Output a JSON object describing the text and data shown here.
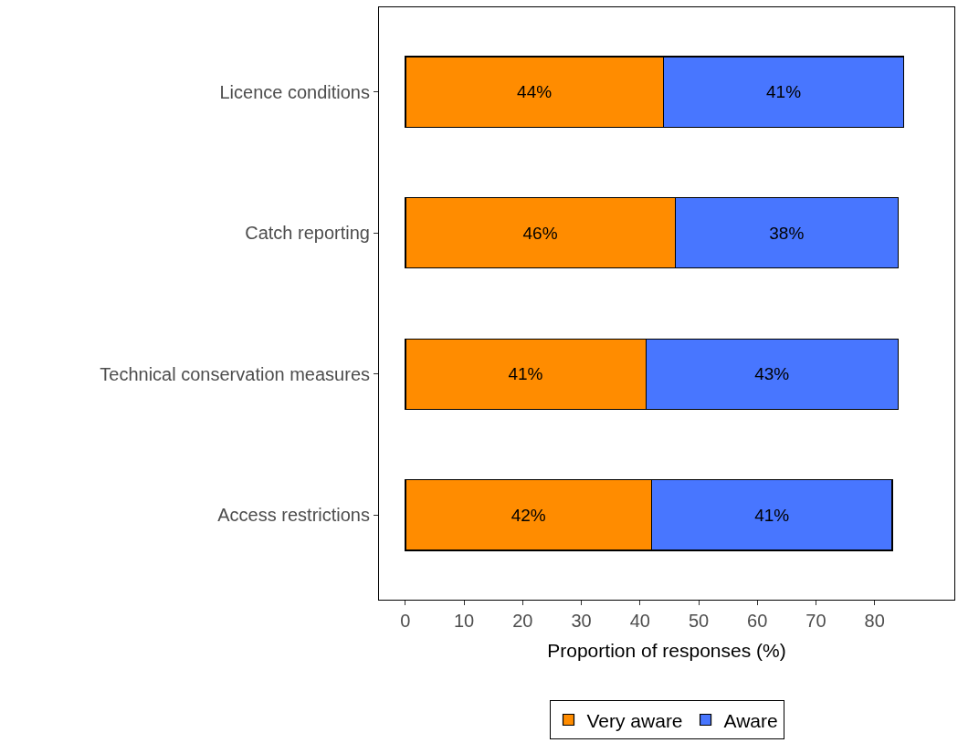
{
  "chart_data": {
    "type": "bar",
    "orientation": "horizontal",
    "stacked": true,
    "categories": [
      "Licence conditions",
      "Catch reporting",
      "Technical conservation measures",
      "Access restrictions"
    ],
    "series": [
      {
        "name": "Very aware",
        "color": "#ff8c00",
        "values": [
          44,
          46,
          41,
          42
        ],
        "value_labels": [
          "44%",
          "46%",
          "41%",
          "42%"
        ]
      },
      {
        "name": "Aware",
        "color": "#4876ff",
        "values": [
          41,
          38,
          43,
          41
        ],
        "value_labels": [
          "41%",
          "38%",
          "43%",
          "41%"
        ]
      }
    ],
    "xlabel": "Proportion of responses (%)",
    "xlim": [
      -4.5,
      93.6
    ],
    "xticks": [
      0,
      10,
      20,
      30,
      40,
      50,
      60,
      70,
      80
    ],
    "legend": "bottom"
  }
}
